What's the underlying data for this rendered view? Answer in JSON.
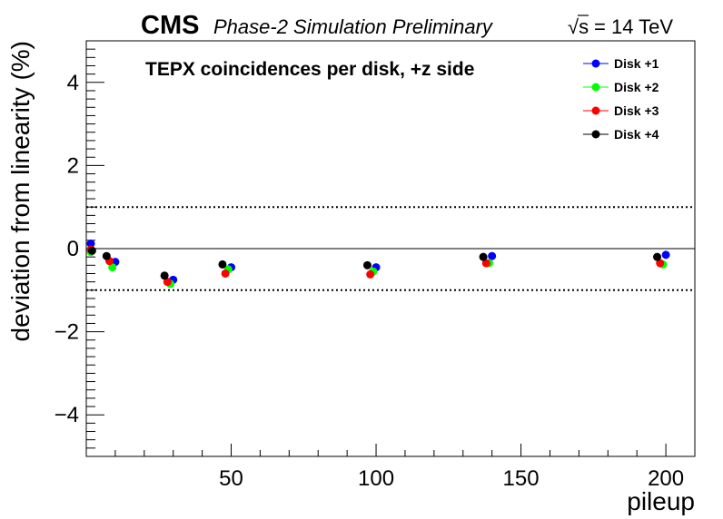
{
  "header": {
    "cms": "CMS",
    "subtitle": "Phase-2 Simulation Preliminary",
    "energy_sqrt": "√s",
    "energy_value": "= 14 TeV"
  },
  "chart_data": {
    "type": "scatter",
    "title": "TEPX coincidences per disk, +z side",
    "xlabel": "pileup",
    "ylabel": "deviation from linearity (%)",
    "xlim": [
      0,
      210
    ],
    "ylim": [
      -5,
      5
    ],
    "x_ticks": [
      50,
      100,
      150,
      200
    ],
    "y_ticks": [
      -4,
      -2,
      0,
      2,
      4
    ],
    "x_tick_labels": [
      "50",
      "100",
      "150",
      "200"
    ],
    "y_tick_labels": [
      "−4",
      "−2",
      "0",
      "2",
      "4"
    ],
    "reference_lines": [
      1,
      -1
    ],
    "legend_position": "top-right",
    "series": [
      {
        "name": "Disk +1",
        "color": "#0000ff",
        "x": [
          1,
          10,
          30,
          50,
          100,
          140,
          200
        ],
        "y": [
          0.12,
          -0.32,
          -0.75,
          -0.45,
          -0.45,
          -0.18,
          -0.15
        ]
      },
      {
        "name": "Disk +2",
        "color": "#00ff00",
        "x": [
          0.5,
          9,
          29,
          49,
          99,
          139,
          199
        ],
        "y": [
          -0.08,
          -0.45,
          -0.85,
          -0.5,
          -0.55,
          -0.35,
          -0.38
        ]
      },
      {
        "name": "Disk +3",
        "color": "#ff0000",
        "x": [
          0.8,
          8,
          28,
          48,
          98,
          138,
          198
        ],
        "y": [
          -0.02,
          -0.3,
          -0.8,
          -0.6,
          -0.62,
          -0.35,
          -0.35
        ]
      },
      {
        "name": "Disk +4",
        "color": "#000000",
        "x": [
          2,
          7,
          27,
          47,
          97,
          137,
          197
        ],
        "y": [
          -0.05,
          -0.18,
          -0.65,
          -0.38,
          -0.4,
          -0.2,
          -0.2
        ]
      }
    ]
  }
}
